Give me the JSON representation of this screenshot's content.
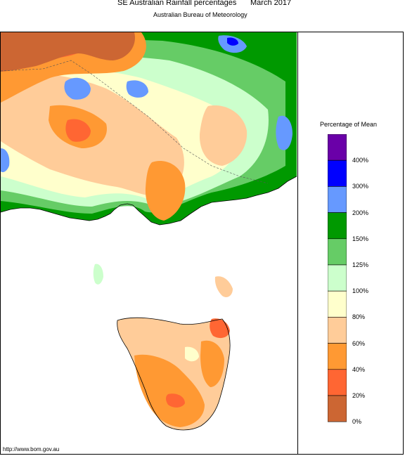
{
  "header": {
    "title": "SE Australian Rainfall percentages",
    "month": "March 2017",
    "subtitle": "Australian Bureau of Meteorology"
  },
  "legend": {
    "title": "Percentage of Mean",
    "bands": [
      {
        "label": "400%",
        "color": "#6a00a8"
      },
      {
        "label": "300%",
        "color": "#0000ff"
      },
      {
        "label": "200%",
        "color": "#6699ff"
      },
      {
        "label": "150%",
        "color": "#009900"
      },
      {
        "label": "125%",
        "color": "#66cc66"
      },
      {
        "label": "100%",
        "color": "#ccffcc"
      },
      {
        "label": "80%",
        "color": "#ffffcc"
      },
      {
        "label": "60%",
        "color": "#ffcc99"
      },
      {
        "label": "40%",
        "color": "#ff9933"
      },
      {
        "label": "20%",
        "color": "#ff6633"
      },
      {
        "label": "0%",
        "color": "#cc6633"
      }
    ]
  },
  "footer": {
    "url": "http://www.bom.gov.au"
  }
}
